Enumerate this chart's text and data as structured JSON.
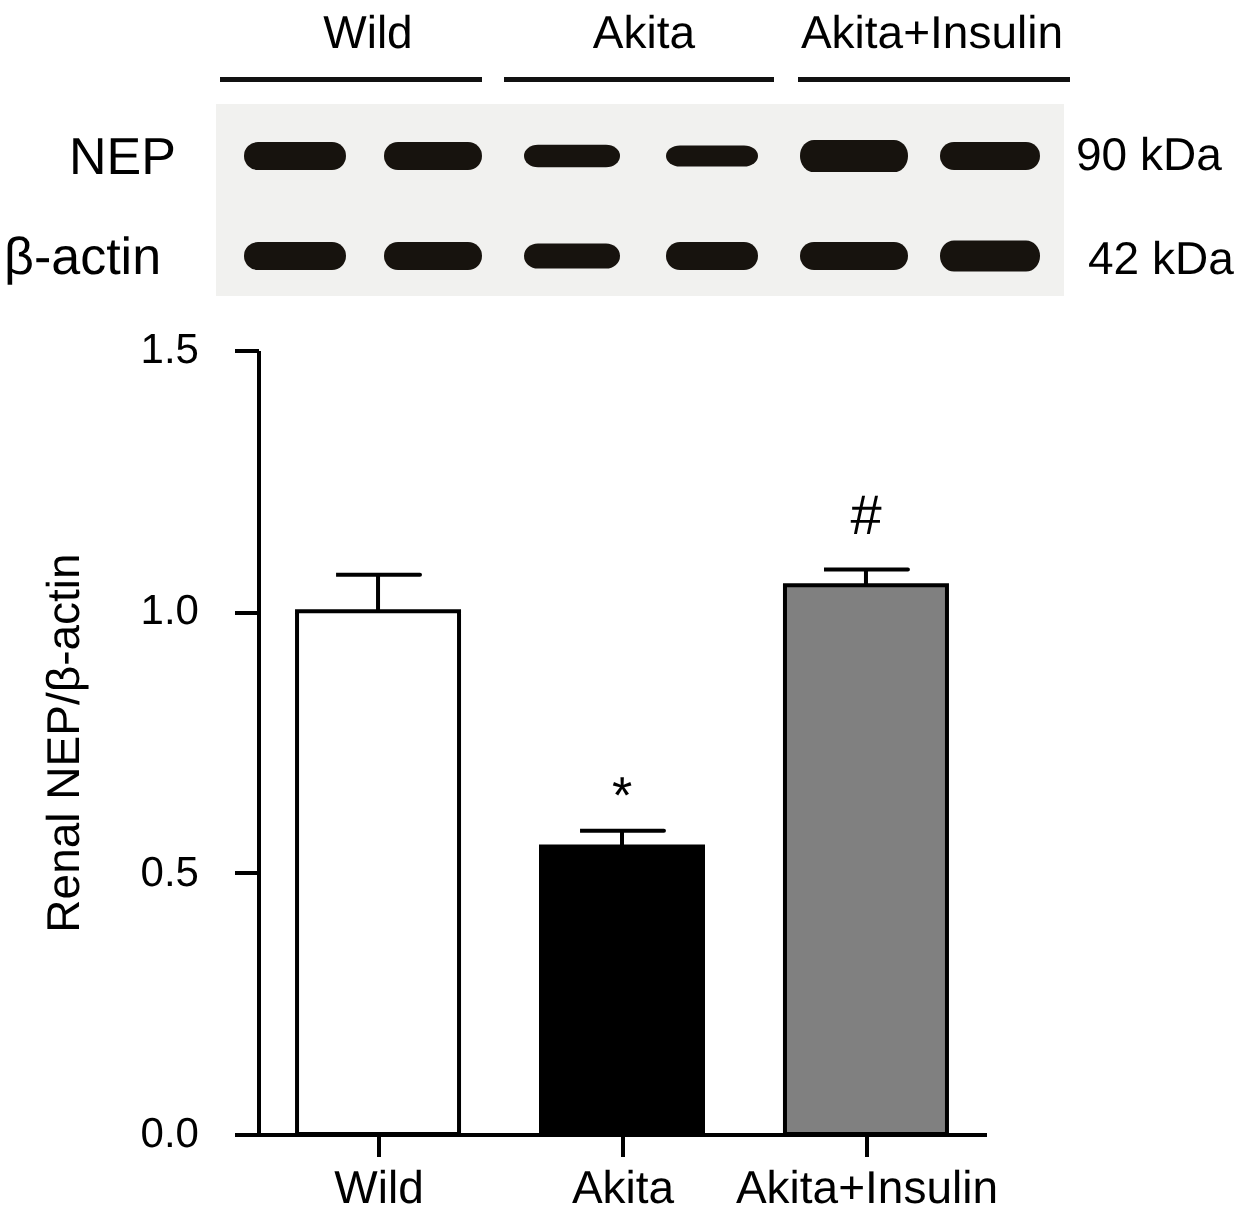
{
  "chart_data": {
    "type": "bar",
    "categories": [
      "Wild",
      "Akita",
      "Akita+Insulin"
    ],
    "values": [
      1.0,
      0.55,
      1.05
    ],
    "colors": [
      "#ffffff",
      "#000000",
      "#808080"
    ],
    "errors": [
      [
        1.0,
        1.07
      ],
      [
        0.55,
        0.58
      ],
      [
        1.05,
        1.08
      ]
    ],
    "ylabel": "Renal NEP/β-actin",
    "ylim": [
      0,
      1.5
    ],
    "yticks": [
      {
        "value": 0,
        "label": "0.0"
      },
      {
        "value": 0.5,
        "label": "0.5"
      },
      {
        "value": 1,
        "label": "1.0"
      },
      1.5
    ],
    "grid": false,
    "legend": false,
    "annotations": [
      "Wild",
      "Akita",
      "Akita+Insulin",
      "NEP",
      "β-actin",
      "90 kDa",
      "42 kDa",
      "*",
      "#"
    ]
  }
}
